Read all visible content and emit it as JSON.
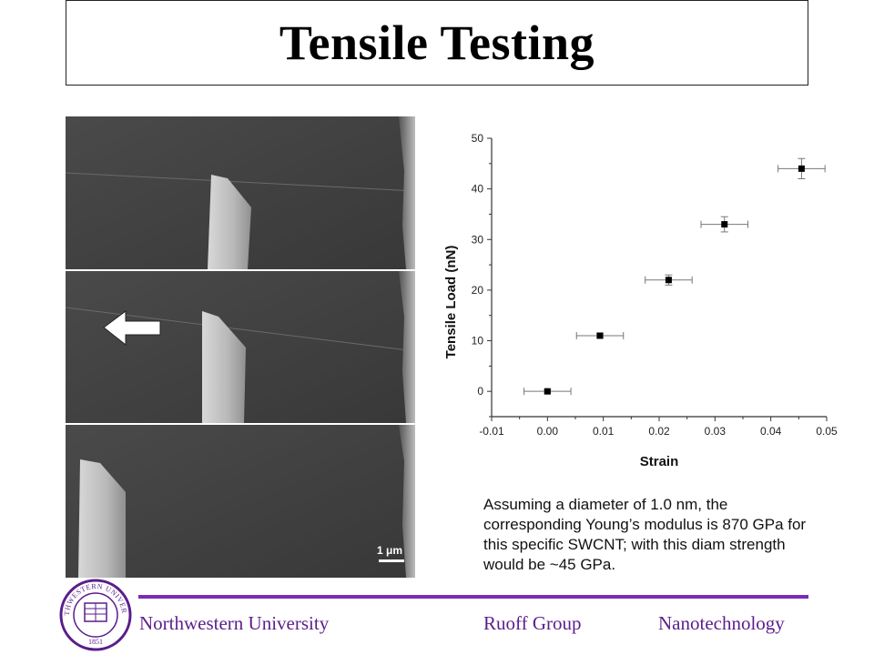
{
  "slide": {
    "title": "Tensile Testing",
    "scale_label": "1 μm",
    "note": "Assuming a diameter of 1.0 nm, the corresponding Young’s modulus is 870 GPa for this specific SWCNT; with this diam strength would be ~45 GPa.",
    "footer": {
      "left": "Northwestern University",
      "middle": "Ruoff Group",
      "right": "Nanotechnology"
    },
    "seal_text": "NORTHWESTERN UNIVERSITY",
    "seal_year": "1851"
  },
  "chart_data": {
    "type": "scatter",
    "title": "",
    "xlabel": "Strain",
    "ylabel": "Tensile Load (nN)",
    "xlim": [
      -0.01,
      0.05
    ],
    "ylim": [
      -5,
      50
    ],
    "x_ticks": [
      "-0.01",
      "0.00",
      "0.01",
      "0.02",
      "0.03",
      "0.04",
      "0.05"
    ],
    "y_ticks": [
      "0",
      "10",
      "20",
      "30",
      "40",
      "50"
    ],
    "points": [
      {
        "x": 0.0,
        "y": 0.0,
        "xerr": 0.0042,
        "yerr": 0.3
      },
      {
        "x": 0.0094,
        "y": 11.0,
        "xerr": 0.0042,
        "yerr": 0.4
      },
      {
        "x": 0.0217,
        "y": 22.0,
        "xerr": 0.0042,
        "yerr": 1.0
      },
      {
        "x": 0.0317,
        "y": 33.0,
        "xerr": 0.0042,
        "yerr": 1.5
      },
      {
        "x": 0.0455,
        "y": 44.0,
        "xerr": 0.0042,
        "yerr": 2.0
      }
    ],
    "grid": false,
    "colors": {
      "marker": "#000000",
      "errorbar": "#777777",
      "axis": "#333333"
    }
  }
}
